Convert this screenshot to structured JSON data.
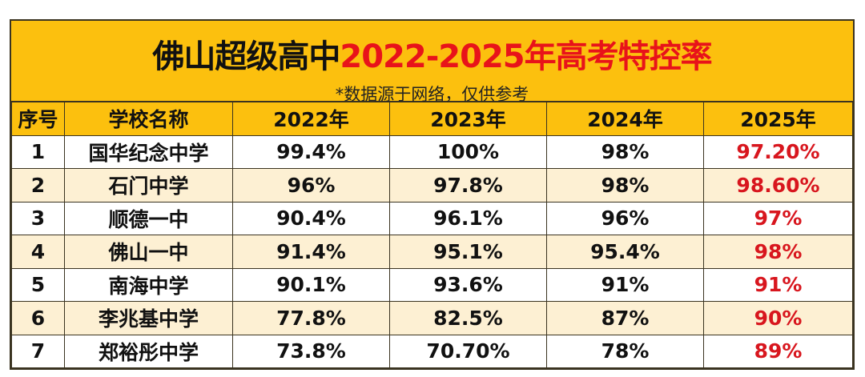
{
  "title": {
    "black": "佛山超级高中",
    "red": "2022-2025年高考特控率"
  },
  "subtitle": "*数据源于网络，仅供参考",
  "headers": [
    "序号",
    "学校名称",
    "2022年",
    "2023年",
    "2024年",
    "2025年"
  ],
  "rows": [
    [
      "1",
      "国华纪念中学",
      "99.4%",
      "100%",
      "98%",
      "97.20%"
    ],
    [
      "2",
      "石门中学",
      "96%",
      "97.8%",
      "98%",
      "98.60%"
    ],
    [
      "3",
      "顺德一中",
      "90.4%",
      "96.1%",
      "96%",
      "97%"
    ],
    [
      "4",
      "佛山一中",
      "91.4%",
      "95.1%",
      "95.4%",
      "98%"
    ],
    [
      "5",
      "南海中学",
      "90.1%",
      "93.6%",
      "91%",
      "91%"
    ],
    [
      "6",
      "李兆基中学",
      "77.8%",
      "82.5%",
      "87%",
      "90%"
    ],
    [
      "7",
      "郑裕彤中学",
      "73.8%",
      "70.70%",
      "78%",
      "89%"
    ]
  ],
  "colors": {
    "header": "#fcc00e",
    "accent": "#e8131a",
    "alt_row": "#fdf0d3"
  }
}
